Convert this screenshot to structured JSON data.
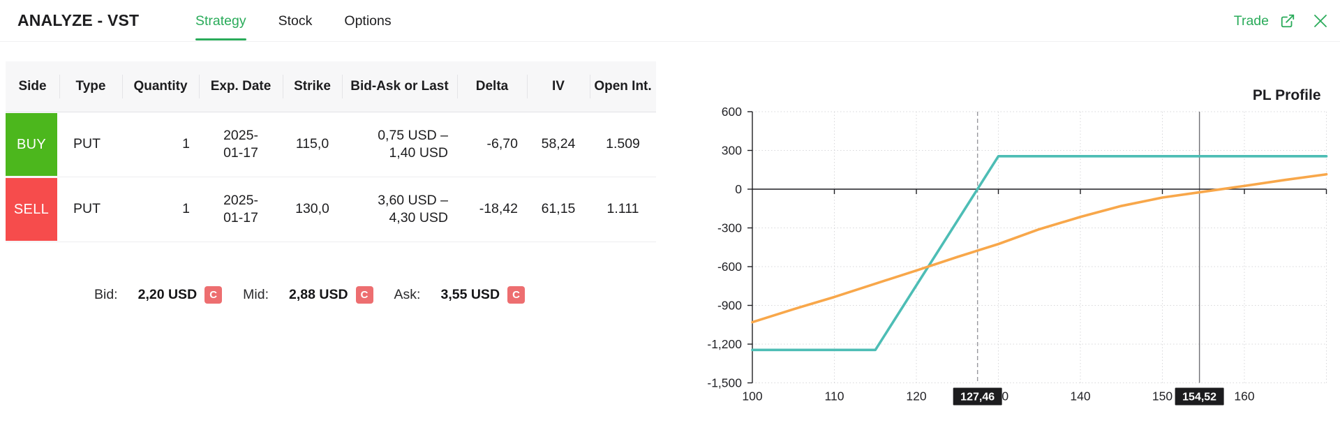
{
  "header": {
    "title": "ANALYZE - VST",
    "tabs": [
      {
        "label": "Strategy",
        "active": true
      },
      {
        "label": "Stock",
        "active": false
      },
      {
        "label": "Options",
        "active": false
      }
    ],
    "trade_label": "Trade"
  },
  "table": {
    "columns": [
      "Side",
      "Type",
      "Quantity",
      "Exp. Date",
      "Strike",
      "Bid-Ask or Last",
      "Delta",
      "IV",
      "Open Int."
    ],
    "rows": [
      {
        "side": "BUY",
        "type": "PUT",
        "quantity": "1",
        "exp_date_line1": "2025-",
        "exp_date_line2": "01-17",
        "strike": "115,0",
        "bid_ask_line1": "0,75 USD –",
        "bid_ask_line2": "1,40 USD",
        "delta": "-6,70",
        "iv": "58,24",
        "open_int": "1.509"
      },
      {
        "side": "SELL",
        "type": "PUT",
        "quantity": "1",
        "exp_date_line1": "2025-",
        "exp_date_line2": "01-17",
        "strike": "130,0",
        "bid_ask_line1": "3,60 USD –",
        "bid_ask_line2": "4,30 USD",
        "delta": "-18,42",
        "iv": "61,15",
        "open_int": "1.111"
      }
    ]
  },
  "quotes": {
    "bid_label": "Bid:",
    "bid_value": "2,20 USD",
    "mid_label": "Mid:",
    "mid_value": "2,88 USD",
    "ask_label": "Ask:",
    "ask_value": "3,55 USD",
    "badge": "C"
  },
  "colors": {
    "accent_green": "#2aab5a",
    "buy_green": "#4cb71d",
    "sell_red": "#f64c4c",
    "quote_badge_red": "#ed6e70",
    "axis_marker_badge": "#1c1c1e",
    "expiration_line": "#4dbdb5",
    "current_line": "#f8a74a"
  },
  "chart_data": {
    "type": "line",
    "title": "PL Profile",
    "xlabel": "",
    "ylabel": "",
    "xlim": [
      100,
      170
    ],
    "ylim": [
      -1500,
      600
    ],
    "x_ticks": [
      100,
      110,
      120,
      130,
      140,
      150,
      160
    ],
    "x_tick_labels": [
      "100",
      "110",
      "120",
      "130",
      "140",
      "150",
      "160"
    ],
    "y_ticks": [
      600,
      300,
      0,
      -300,
      -600,
      -900,
      -1200,
      -1500
    ],
    "y_tick_labels": [
      "600",
      "300",
      "0",
      "-300",
      "-600",
      "-900",
      "-1,200",
      "-1,500"
    ],
    "grid": "dotted",
    "legend": "none",
    "markers": [
      {
        "x": 127.46,
        "label": "127,46",
        "line": "dashed"
      },
      {
        "x": 154.52,
        "label": "154,52",
        "line": "solid"
      }
    ],
    "series": [
      {
        "name": "expiration-payoff",
        "color": "#4dbdb5",
        "points": [
          [
            100,
            -1245
          ],
          [
            115,
            -1245
          ],
          [
            130,
            255
          ],
          [
            170,
            255
          ]
        ]
      },
      {
        "name": "current-pl",
        "color": "#f8a74a",
        "points": [
          [
            100,
            -1030
          ],
          [
            105,
            -930
          ],
          [
            110,
            -835
          ],
          [
            115,
            -732
          ],
          [
            120,
            -630
          ],
          [
            125,
            -525
          ],
          [
            130,
            -425
          ],
          [
            135,
            -310
          ],
          [
            140,
            -215
          ],
          [
            145,
            -130
          ],
          [
            150,
            -65
          ],
          [
            155,
            -20
          ],
          [
            160,
            25
          ],
          [
            165,
            72
          ],
          [
            170,
            115
          ]
        ]
      }
    ]
  }
}
